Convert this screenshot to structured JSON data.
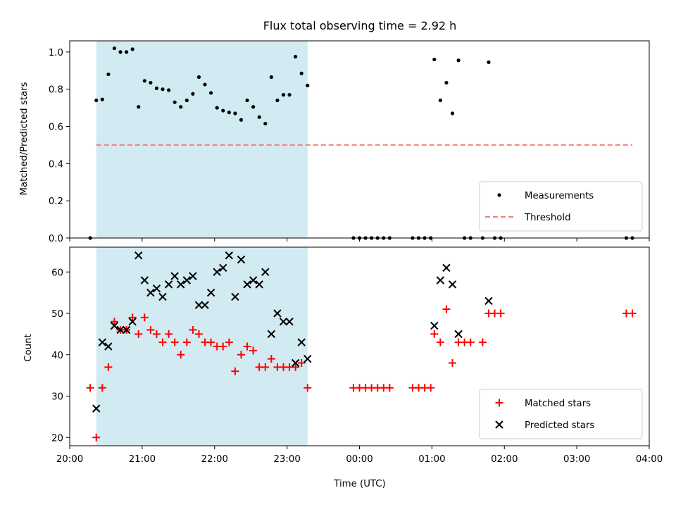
{
  "chart_data": [
    {
      "type": "scatter",
      "title": "Flux total observing time = 2.92 h",
      "xlabel": "",
      "ylabel": "Matched/Predicted stars",
      "xlim": [
        "20:00",
        "04:00"
      ],
      "ylim": [
        0,
        1.06
      ],
      "xticks": [
        "20:00",
        "21:00",
        "22:00",
        "23:00",
        "00:00",
        "01:00",
        "02:00",
        "03:00",
        "04:00"
      ],
      "yticks": [
        "0.0",
        "0.2",
        "0.4",
        "0.6",
        "0.8",
        "1.0"
      ],
      "shaded_interval": {
        "start": "20:22",
        "end": "23:17",
        "color": "#add8e6"
      },
      "legend_position": "lower-right",
      "series": [
        {
          "name": "Measurements",
          "marker": "dot",
          "color": "#000000",
          "points": [
            [
              "20:17",
              0.0
            ],
            [
              "20:22",
              0.74
            ],
            [
              "20:27",
              0.745
            ],
            [
              "20:32",
              0.88
            ],
            [
              "20:37",
              1.02
            ],
            [
              "20:42",
              1.0
            ],
            [
              "20:47",
              1.0
            ],
            [
              "20:52",
              1.015
            ],
            [
              "20:57",
              0.705
            ],
            [
              "21:02",
              0.845
            ],
            [
              "21:07",
              0.835
            ],
            [
              "21:12",
              0.805
            ],
            [
              "21:17",
              0.8
            ],
            [
              "21:22",
              0.795
            ],
            [
              "21:27",
              0.73
            ],
            [
              "21:32",
              0.705
            ],
            [
              "21:37",
              0.74
            ],
            [
              "21:42",
              0.775
            ],
            [
              "21:47",
              0.865
            ],
            [
              "21:52",
              0.825
            ],
            [
              "21:57",
              0.78
            ],
            [
              "22:02",
              0.7
            ],
            [
              "22:07",
              0.685
            ],
            [
              "22:12",
              0.675
            ],
            [
              "22:17",
              0.67
            ],
            [
              "22:22",
              0.635
            ],
            [
              "22:27",
              0.74
            ],
            [
              "22:32",
              0.705
            ],
            [
              "22:37",
              0.65
            ],
            [
              "22:42",
              0.615
            ],
            [
              "22:47",
              0.865
            ],
            [
              "22:52",
              0.74
            ],
            [
              "22:57",
              0.77
            ],
            [
              "23:02",
              0.77
            ],
            [
              "23:07",
              0.975
            ],
            [
              "23:12",
              0.885
            ],
            [
              "23:17",
              0.82
            ],
            [
              "23:55",
              0.0
            ],
            [
              "00:00",
              0.0
            ],
            [
              "00:05",
              0.0
            ],
            [
              "00:10",
              0.0
            ],
            [
              "00:15",
              0.0
            ],
            [
              "00:20",
              0.0
            ],
            [
              "00:25",
              0.0
            ],
            [
              "00:44",
              0.0
            ],
            [
              "00:49",
              0.0
            ],
            [
              "00:54",
              0.0
            ],
            [
              "00:59",
              0.0
            ],
            [
              "01:02",
              0.96
            ],
            [
              "01:07",
              0.74
            ],
            [
              "01:12",
              0.835
            ],
            [
              "01:17",
              0.67
            ],
            [
              "01:22",
              0.955
            ],
            [
              "01:27",
              0.0
            ],
            [
              "01:32",
              0.0
            ],
            [
              "01:42",
              0.0
            ],
            [
              "01:47",
              0.945
            ],
            [
              "01:52",
              0.0
            ],
            [
              "01:57",
              0.0
            ],
            [
              "03:41",
              0.0
            ],
            [
              "03:46",
              0.0
            ]
          ]
        },
        {
          "name": "Threshold",
          "marker": "dashed-line",
          "color": "#f08080",
          "points": [
            [
              "20:22",
              0.5
            ],
            [
              "03:46",
              0.5
            ]
          ]
        }
      ]
    },
    {
      "type": "scatter",
      "title": "",
      "xlabel": "Time (UTC)",
      "ylabel": "Count",
      "xlim": [
        "20:00",
        "04:00"
      ],
      "ylim": [
        18,
        66
      ],
      "xticks": [
        "20:00",
        "21:00",
        "22:00",
        "23:00",
        "00:00",
        "01:00",
        "02:00",
        "03:00",
        "04:00"
      ],
      "yticks": [
        "20",
        "30",
        "40",
        "50",
        "60"
      ],
      "shaded_interval": {
        "start": "20:22",
        "end": "23:17",
        "color": "#add8e6"
      },
      "legend_position": "lower-right",
      "series": [
        {
          "name": "Matched stars",
          "marker": "plus",
          "color": "#ff0000",
          "points": [
            [
              "20:17",
              32
            ],
            [
              "20:22",
              20
            ],
            [
              "20:27",
              32
            ],
            [
              "20:32",
              37
            ],
            [
              "20:37",
              48
            ],
            [
              "20:42",
              46
            ],
            [
              "20:47",
              46
            ],
            [
              "20:52",
              49
            ],
            [
              "20:57",
              45
            ],
            [
              "21:02",
              49
            ],
            [
              "21:07",
              46
            ],
            [
              "21:12",
              45
            ],
            [
              "21:17",
              43
            ],
            [
              "21:22",
              45
            ],
            [
              "21:27",
              43
            ],
            [
              "21:32",
              40
            ],
            [
              "21:37",
              43
            ],
            [
              "21:42",
              46
            ],
            [
              "21:47",
              45
            ],
            [
              "21:52",
              43
            ],
            [
              "21:57",
              43
            ],
            [
              "22:02",
              42
            ],
            [
              "22:07",
              42
            ],
            [
              "22:12",
              43
            ],
            [
              "22:17",
              36
            ],
            [
              "22:22",
              40
            ],
            [
              "22:27",
              42
            ],
            [
              "22:32",
              41
            ],
            [
              "22:37",
              37
            ],
            [
              "22:42",
              37
            ],
            [
              "22:47",
              39
            ],
            [
              "22:52",
              37
            ],
            [
              "22:57",
              37
            ],
            [
              "23:02",
              37
            ],
            [
              "23:07",
              37
            ],
            [
              "23:12",
              38
            ],
            [
              "23:17",
              32
            ],
            [
              "23:55",
              32
            ],
            [
              "00:00",
              32
            ],
            [
              "00:05",
              32
            ],
            [
              "00:10",
              32
            ],
            [
              "00:15",
              32
            ],
            [
              "00:20",
              32
            ],
            [
              "00:25",
              32
            ],
            [
              "00:44",
              32
            ],
            [
              "00:49",
              32
            ],
            [
              "00:54",
              32
            ],
            [
              "00:59",
              32
            ],
            [
              "01:02",
              45
            ],
            [
              "01:07",
              43
            ],
            [
              "01:12",
              51
            ],
            [
              "01:17",
              38
            ],
            [
              "01:22",
              43
            ],
            [
              "01:27",
              43
            ],
            [
              "01:32",
              43
            ],
            [
              "01:42",
              43
            ],
            [
              "01:47",
              50
            ],
            [
              "01:52",
              50
            ],
            [
              "01:57",
              50
            ],
            [
              "03:41",
              50
            ],
            [
              "03:46",
              50
            ]
          ]
        },
        {
          "name": "Predicted stars",
          "marker": "x",
          "color": "#000000",
          "points": [
            [
              "20:22",
              27
            ],
            [
              "20:27",
              43
            ],
            [
              "20:32",
              42
            ],
            [
              "20:37",
              47
            ],
            [
              "20:42",
              46
            ],
            [
              "20:47",
              46
            ],
            [
              "20:52",
              48
            ],
            [
              "20:57",
              64
            ],
            [
              "21:02",
              58
            ],
            [
              "21:07",
              55
            ],
            [
              "21:12",
              56
            ],
            [
              "21:17",
              54
            ],
            [
              "21:22",
              57
            ],
            [
              "21:27",
              59
            ],
            [
              "21:32",
              57
            ],
            [
              "21:37",
              58
            ],
            [
              "21:42",
              59
            ],
            [
              "21:47",
              52
            ],
            [
              "21:52",
              52
            ],
            [
              "21:57",
              55
            ],
            [
              "22:02",
              60
            ],
            [
              "22:07",
              61
            ],
            [
              "22:12",
              64
            ],
            [
              "22:17",
              54
            ],
            [
              "22:22",
              63
            ],
            [
              "22:27",
              57
            ],
            [
              "22:32",
              58
            ],
            [
              "22:37",
              57
            ],
            [
              "22:42",
              60
            ],
            [
              "22:47",
              45
            ],
            [
              "22:52",
              50
            ],
            [
              "22:57",
              48
            ],
            [
              "23:02",
              48
            ],
            [
              "23:07",
              38
            ],
            [
              "23:12",
              43
            ],
            [
              "23:17",
              39
            ],
            [
              "01:02",
              47
            ],
            [
              "01:07",
              58
            ],
            [
              "01:12",
              61
            ],
            [
              "01:17",
              57
            ],
            [
              "01:22",
              45
            ],
            [
              "01:47",
              53
            ]
          ]
        }
      ]
    }
  ]
}
